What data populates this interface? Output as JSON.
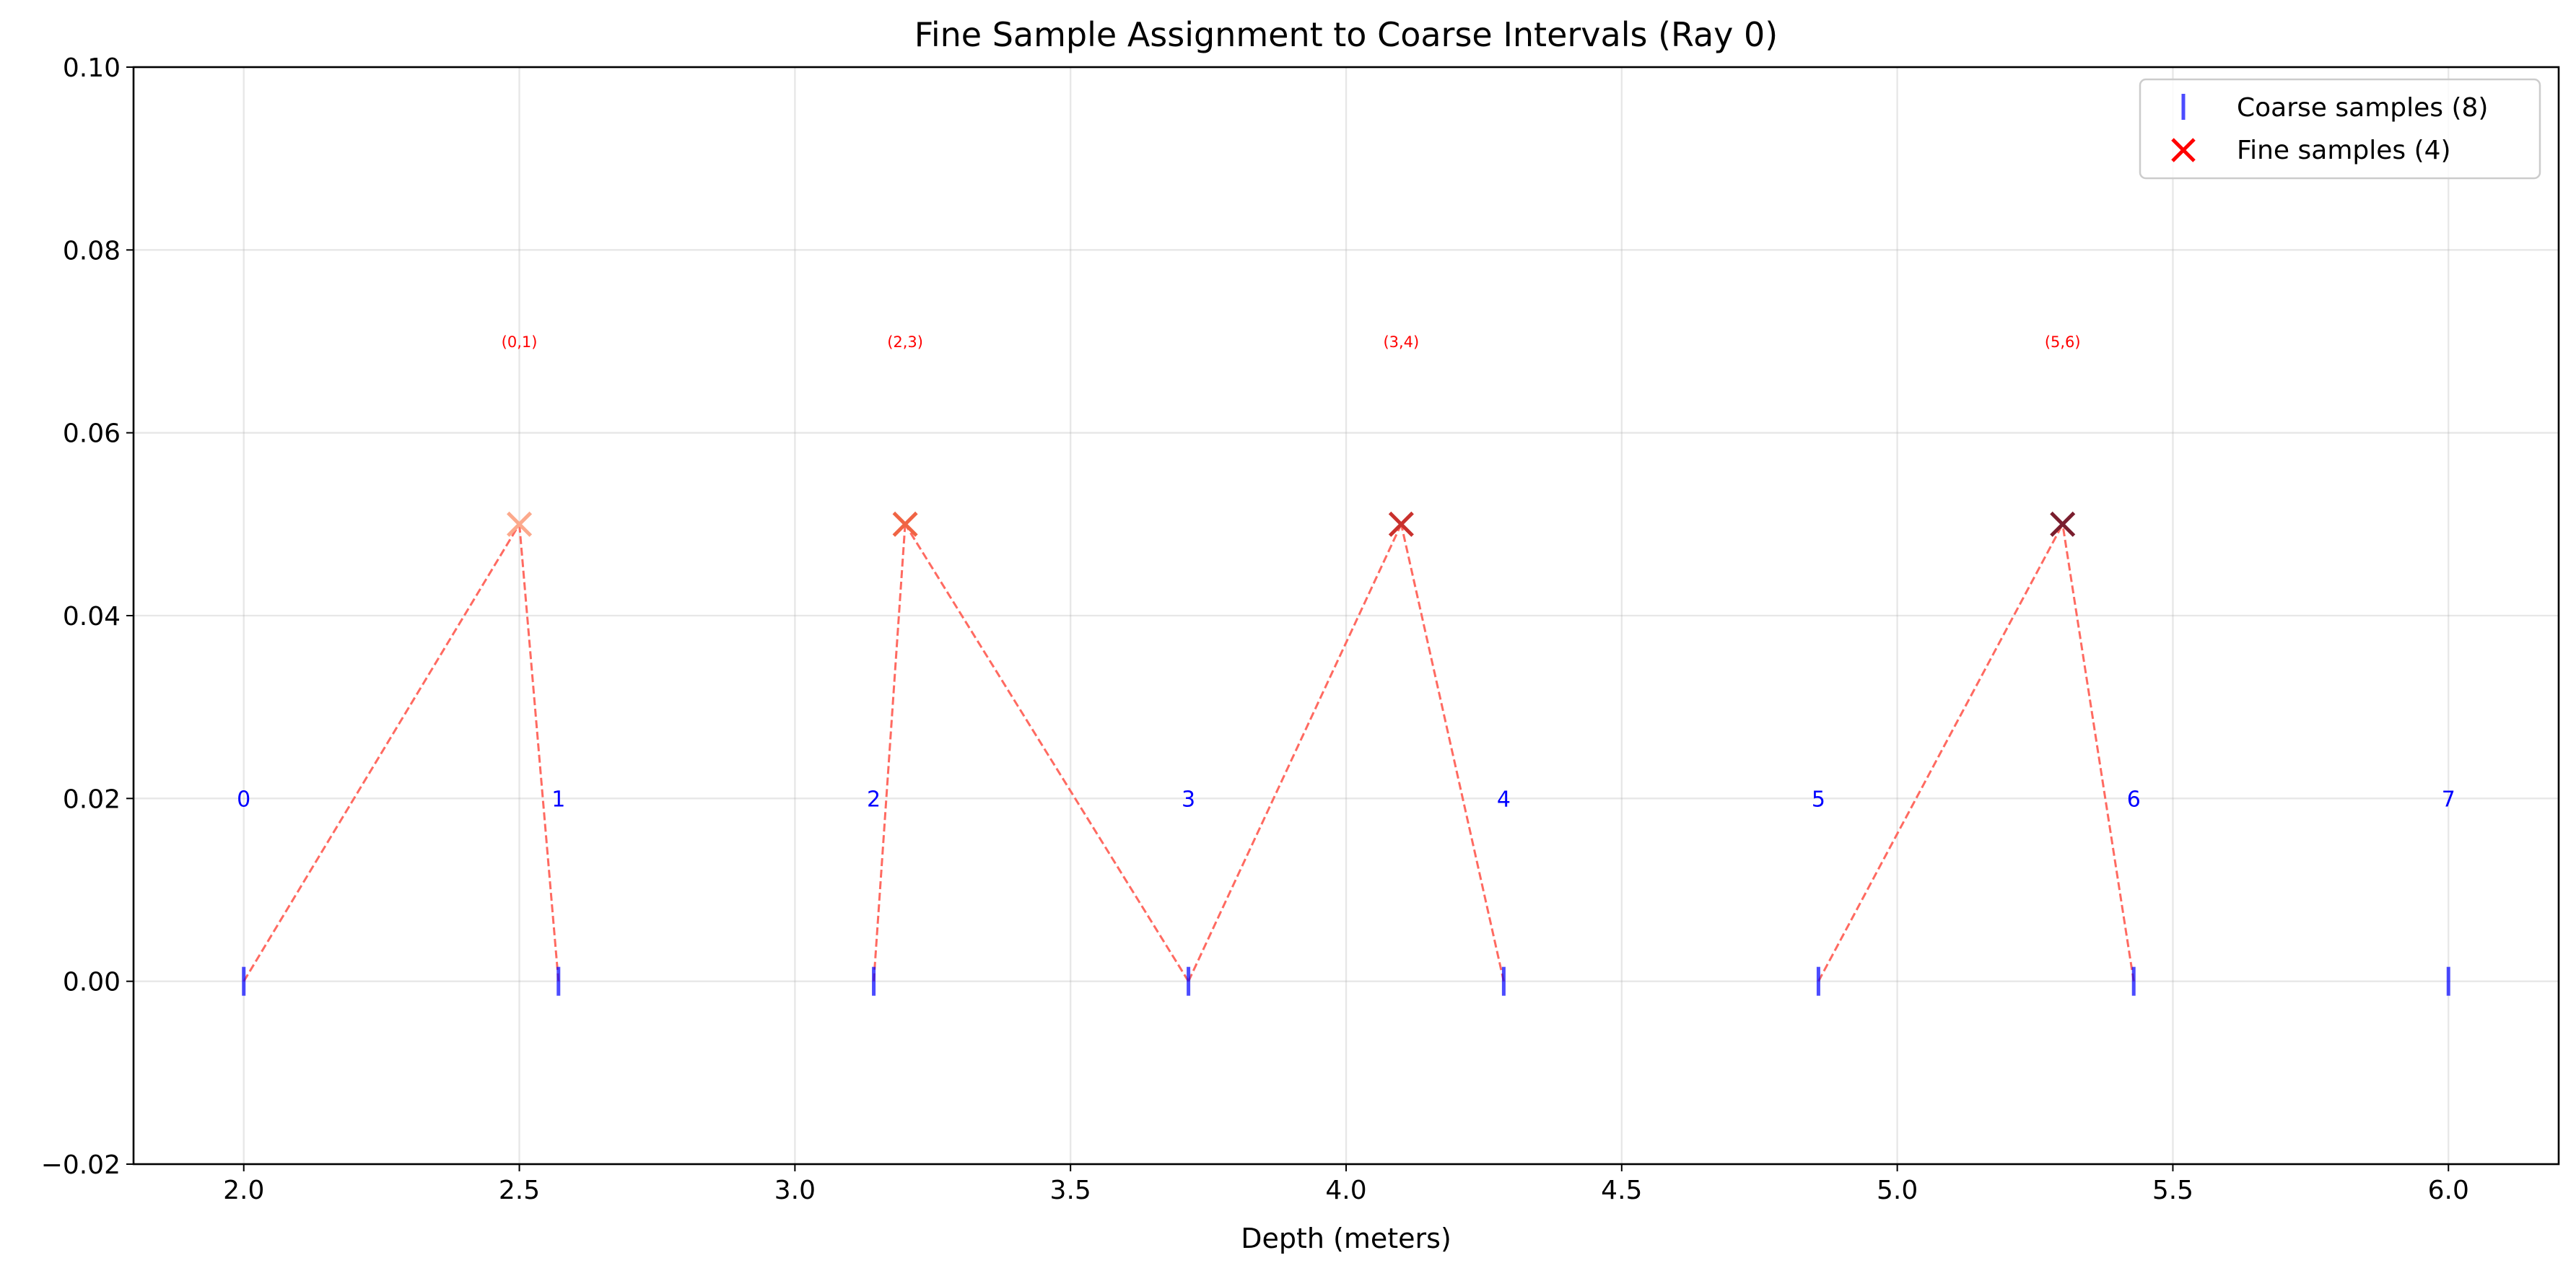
{
  "chart_data": {
    "type": "scatter",
    "title": "Fine Sample Assignment to Coarse Intervals (Ray 0)",
    "xlabel": "Depth (meters)",
    "ylabel": "",
    "xlim": [
      1.8,
      6.2
    ],
    "ylim": [
      -0.02,
      0.1
    ],
    "xticks": [
      "2.0",
      "2.5",
      "3.0",
      "3.5",
      "4.0",
      "4.5",
      "5.0",
      "5.5",
      "6.0"
    ],
    "yticks": [
      "−0.02",
      "0.00",
      "0.02",
      "0.04",
      "0.06",
      "0.08",
      "0.10"
    ],
    "grid": true,
    "legend_position": "top-right",
    "coarse": {
      "name": "Coarse samples (8)",
      "color": "#0000ff",
      "x": [
        2.0,
        2.571,
        3.143,
        3.714,
        4.286,
        4.857,
        5.429,
        6.0
      ],
      "y": [
        0,
        0,
        0,
        0,
        0,
        0,
        0,
        0
      ],
      "labels": [
        "0",
        "1",
        "2",
        "3",
        "4",
        "5",
        "6",
        "7"
      ],
      "label_y": 0.02
    },
    "fine": {
      "name": "Fine samples (4)",
      "color": "#ff0000",
      "x": [
        2.5,
        3.2,
        4.1,
        5.3
      ],
      "y": [
        0.05,
        0.05,
        0.05,
        0.05
      ],
      "colors": [
        "#fca98c",
        "#f06444",
        "#c9312d",
        "#7a1e2e"
      ],
      "labels": [
        "(0,1)",
        "(2,3)",
        "(3,4)",
        "(5,6)"
      ],
      "label_y": 0.07,
      "intervals": [
        [
          0,
          1
        ],
        [
          2,
          3
        ],
        [
          3,
          4
        ],
        [
          5,
          6
        ]
      ]
    },
    "connector_color": "#ff6a61"
  }
}
